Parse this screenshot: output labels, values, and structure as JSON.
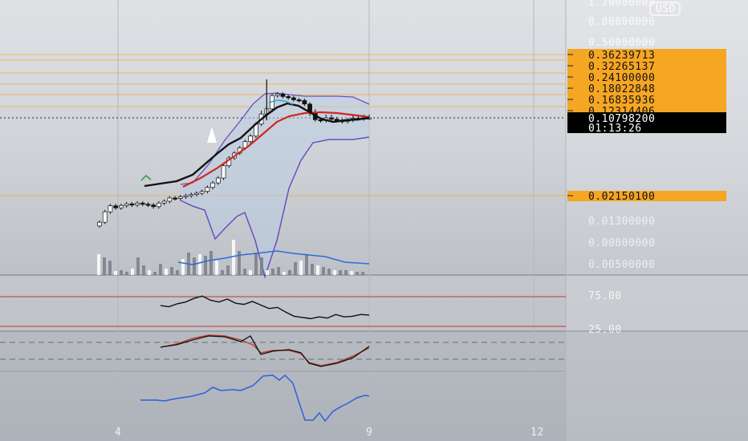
{
  "price_axis": {
    "currency": "USD",
    "scale_labels": [
      "1.20000000",
      "0.80000000",
      "0.50000000"
    ],
    "key_levels": [
      "0.36239713",
      "0.32265137",
      "0.24100000",
      "0.18022848",
      "0.16835936",
      "0.12314406"
    ],
    "current_price": "0.10798200",
    "countdown": "01:13:26",
    "support_level": "0.02150100",
    "volume_labels": [
      "0.01300000",
      "0.00800000",
      "0.00500000"
    ]
  },
  "oscillator_labels": {
    "upper": "75.00",
    "lower": "25.00"
  },
  "time_axis": [
    "4",
    "9",
    "12"
  ],
  "colors": {
    "level": "#f5a623",
    "current": "#000000",
    "ema_fast": "#111111",
    "ema_slow": "#d0281f",
    "bollinger": "#6a4fc0",
    "volume_ma": "#2d6ed8",
    "oscillator_blue": "#2d5fe0"
  },
  "chart_data": {
    "type": "candlestick",
    "title": "",
    "log_scale": true,
    "y_range": [
      0.0048,
      1.25
    ],
    "current_price": 0.107982,
    "horizontal_levels": [
      0.36239713,
      0.32265137,
      0.241,
      0.18022848,
      0.16835936,
      0.12314406,
      0.021501
    ],
    "x_ticks": [
      "4",
      "9",
      "12"
    ],
    "close_series": [
      0.0125,
      0.0155,
      0.0175,
      0.0168,
      0.0176,
      0.0182,
      0.0178,
      0.0185,
      0.0181,
      0.0178,
      0.0172,
      0.0185,
      0.0192,
      0.0205,
      0.0203,
      0.021,
      0.0215,
      0.022,
      0.0226,
      0.0235,
      0.0255,
      0.028,
      0.031,
      0.04,
      0.047,
      0.052,
      0.058,
      0.066,
      0.074,
      0.095,
      0.113,
      0.12,
      0.155,
      0.16,
      0.152,
      0.148,
      0.142,
      0.14,
      0.13,
      0.115,
      0.104,
      0.102,
      0.108,
      0.105,
      0.102,
      0.1,
      0.103,
      0.107,
      0.106,
      0.108,
      0.108
    ],
    "rsi": [
      60,
      58,
      63,
      66,
      72,
      76,
      69,
      66,
      71,
      64,
      62,
      67,
      61,
      55,
      57,
      49,
      42,
      40,
      38,
      41,
      39,
      45,
      41,
      42,
      45,
      44
    ]
  }
}
